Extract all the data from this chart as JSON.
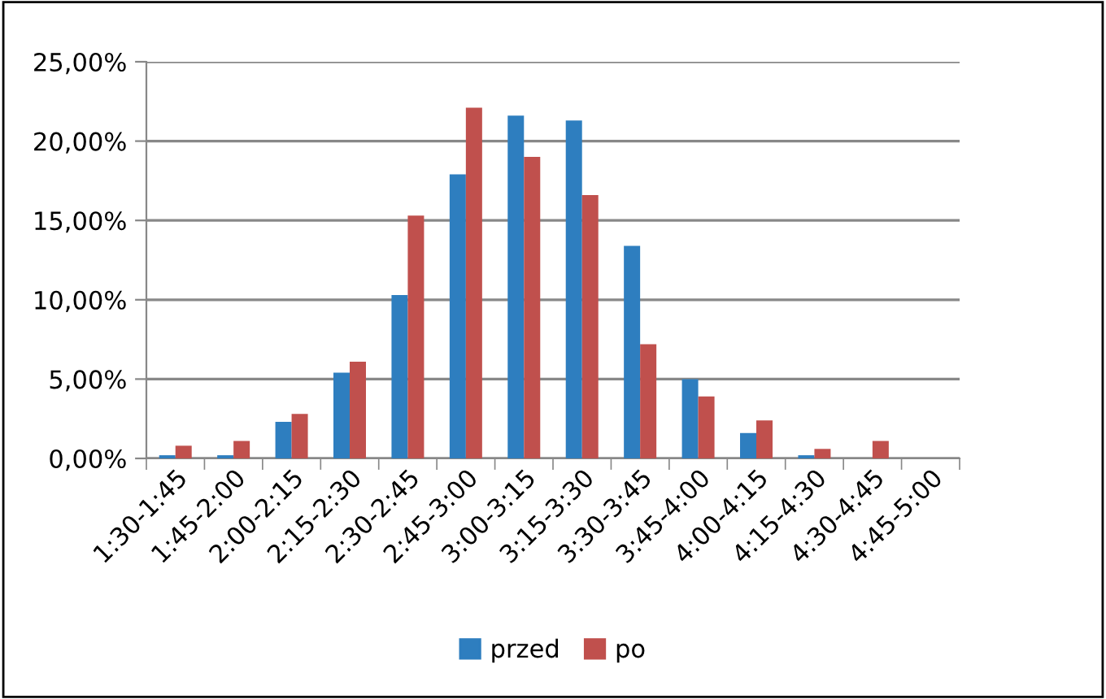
{
  "chart_data": {
    "type": "bar",
    "categories": [
      "1:30-1:45",
      "1:45-2:00",
      "2:00-2:15",
      "2:15-2:30",
      "2:30-2:45",
      "2:45-3:00",
      "3:00-3:15",
      "3:15-3:30",
      "3:30-3:45",
      "3:45-4:00",
      "4:00-4:15",
      "4:15-4:30",
      "4:30-4:45",
      "4:45-5:00"
    ],
    "series": [
      {
        "name": "przed",
        "color": "#2e7ebf",
        "values": [
          0.2,
          0.2,
          2.3,
          5.4,
          10.3,
          17.9,
          21.6,
          21.3,
          13.4,
          5.0,
          1.6,
          0.2,
          0,
          0
        ]
      },
      {
        "name": "po",
        "color": "#c0504d",
        "values": [
          0.8,
          1.1,
          2.8,
          6.1,
          15.3,
          22.1,
          19.0,
          16.6,
          7.2,
          3.9,
          2.4,
          0.6,
          1.1,
          0
        ]
      }
    ],
    "ylim": [
      0,
      25
    ],
    "yticks": [
      {
        "value": 0,
        "label": "0,00%"
      },
      {
        "value": 5,
        "label": "5,00%"
      },
      {
        "value": 10,
        "label": "10,00%"
      },
      {
        "value": 15,
        "label": "15,00%"
      },
      {
        "value": 20,
        "label": "20,00%"
      },
      {
        "value": 25,
        "label": "25,00%"
      }
    ],
    "grid": "y",
    "legend": "bottom"
  }
}
